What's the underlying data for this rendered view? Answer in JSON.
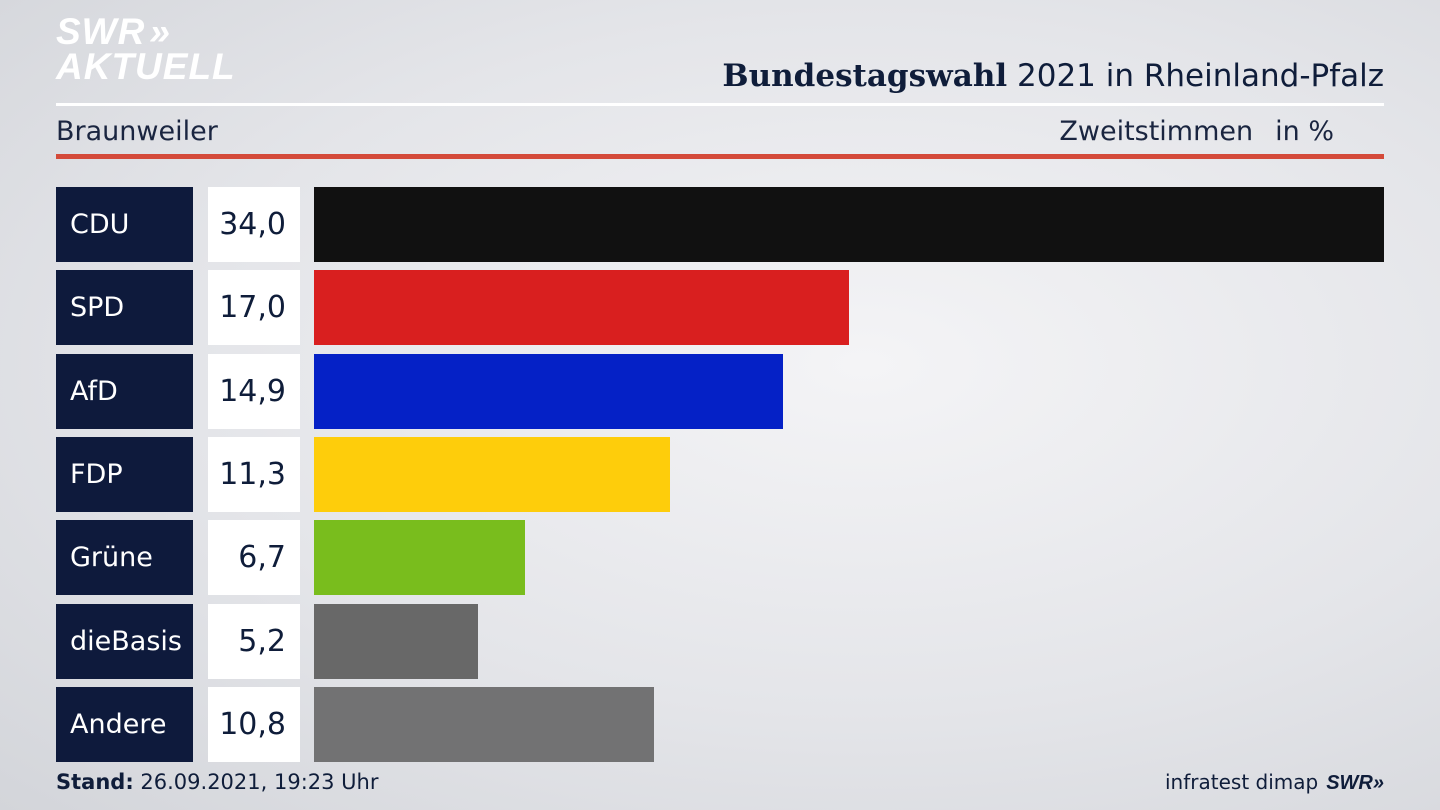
{
  "brand": {
    "line1": "SWR",
    "chevrons": "»",
    "line2": "AKTUELL"
  },
  "header": {
    "title_bold": "Bundestagswahl",
    "title_rest": " 2021 in Rheinland-Pfalz",
    "subtitle": "Braunweiler",
    "vote_type": "Zweitstimmen",
    "unit": "in %"
  },
  "chart_data": {
    "type": "bar",
    "orientation": "horizontal",
    "categories": [
      "CDU",
      "SPD",
      "AfD",
      "FDP",
      "Grüne",
      "dieBasis",
      "Andere"
    ],
    "values": [
      34.0,
      17.0,
      14.9,
      11.3,
      6.7,
      5.2,
      10.8
    ],
    "value_labels": [
      "34,0",
      "17,0",
      "14,9",
      "11,3",
      "6,7",
      "5,2",
      "10,8"
    ],
    "colors": [
      "#111111",
      "#d91f1f",
      "#0521c6",
      "#fecd0b",
      "#79bd1d",
      "#686868",
      "#727273"
    ],
    "xlim": [
      0,
      34.0
    ],
    "grid": false
  },
  "footer": {
    "stand_label": "Stand:",
    "stand_value": " 26.09.2021, 19:23 Uhr",
    "source": "infratest dimap",
    "brand": "SWR»"
  }
}
